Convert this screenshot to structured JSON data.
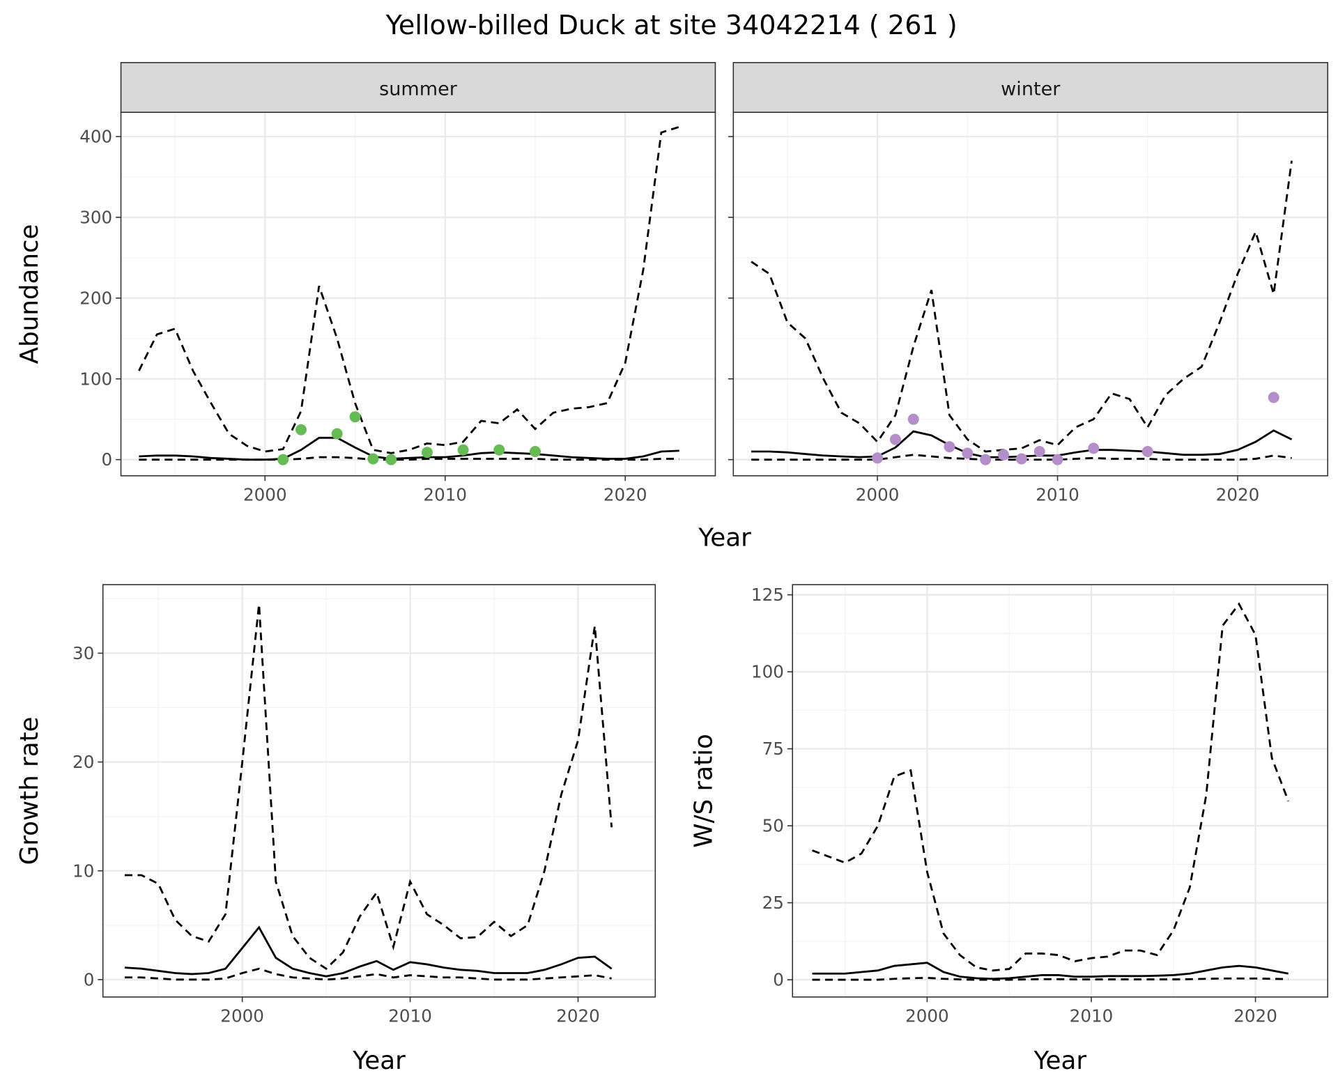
{
  "title": "Yellow-billed Duck at site 34042214 ( 261 )",
  "colors": {
    "summer_points": "#66bb55",
    "winter_points": "#b48ec8",
    "line": "#000000"
  },
  "chart_data": [
    {
      "type": "line",
      "panel": "summer",
      "strip": "summer",
      "xlabel": "Year",
      "ylabel": "Abundance",
      "xlim": [
        1992,
        2025
      ],
      "ylim": [
        -20,
        430
      ],
      "xticks": [
        2000,
        2010,
        2020
      ],
      "yticks": [
        0,
        100,
        200,
        300,
        400
      ],
      "x": [
        1993,
        1994,
        1995,
        1996,
        1997,
        1998,
        1999,
        2000,
        2001,
        2002,
        2003,
        2004,
        2005,
        2006,
        2007,
        2008,
        2009,
        2010,
        2011,
        2012,
        2013,
        2014,
        2015,
        2016,
        2017,
        2018,
        2019,
        2020,
        2021,
        2022,
        2023
      ],
      "series": [
        {
          "name": "upper",
          "style": "dashed",
          "values": [
            110,
            155,
            162,
            110,
            70,
            32,
            17,
            10,
            13,
            60,
            215,
            150,
            70,
            12,
            8,
            12,
            20,
            18,
            22,
            48,
            45,
            62,
            38,
            58,
            63,
            65,
            70,
            120,
            235,
            405,
            412
          ]
        },
        {
          "name": "mean",
          "style": "solid",
          "values": [
            4,
            5,
            5,
            4,
            2,
            1,
            0,
            0,
            1,
            12,
            27,
            27,
            15,
            4,
            1,
            2,
            3,
            3,
            5,
            8,
            9,
            8,
            7,
            5,
            3,
            2,
            1,
            1,
            4,
            10,
            11
          ]
        },
        {
          "name": "lower",
          "style": "dashed",
          "values": [
            0,
            0,
            0,
            0,
            0,
            0,
            0,
            0,
            0,
            1,
            3,
            3,
            2,
            0,
            0,
            0,
            1,
            1,
            1,
            1,
            1,
            1,
            1,
            0,
            0,
            0,
            0,
            0,
            0,
            1,
            1
          ]
        }
      ],
      "points": {
        "x": [
          2001,
          2002,
          2004,
          2005,
          2006,
          2007,
          2009,
          2011,
          2013,
          2015
        ],
        "y": [
          0,
          37,
          32,
          53,
          1,
          0,
          9,
          12,
          12,
          10
        ]
      }
    },
    {
      "type": "line",
      "panel": "winter",
      "strip": "winter",
      "xlabel": "Year",
      "ylabel": "Abundance",
      "xlim": [
        1992,
        2025
      ],
      "ylim": [
        -20,
        430
      ],
      "xticks": [
        2000,
        2010,
        2020
      ],
      "yticks": [
        0,
        100,
        200,
        300,
        400
      ],
      "x": [
        1993,
        1994,
        1995,
        1996,
        1997,
        1998,
        1999,
        2000,
        2001,
        2002,
        2003,
        2004,
        2005,
        2006,
        2007,
        2008,
        2009,
        2010,
        2011,
        2012,
        2013,
        2014,
        2015,
        2016,
        2017,
        2018,
        2019,
        2020,
        2021,
        2022,
        2023
      ],
      "series": [
        {
          "name": "upper",
          "style": "dashed",
          "values": [
            245,
            230,
            170,
            150,
            100,
            58,
            45,
            22,
            55,
            140,
            210,
            55,
            25,
            10,
            12,
            14,
            24,
            18,
            40,
            50,
            82,
            75,
            40,
            80,
            100,
            115,
            170,
            230,
            282,
            205,
            370
          ]
        },
        {
          "name": "mean",
          "style": "solid",
          "values": [
            10,
            10,
            9,
            7,
            5,
            4,
            3,
            4,
            15,
            35,
            30,
            18,
            8,
            3,
            3,
            4,
            5,
            5,
            9,
            12,
            12,
            11,
            10,
            8,
            6,
            6,
            7,
            12,
            22,
            36,
            25
          ]
        },
        {
          "name": "lower",
          "style": "dashed",
          "values": [
            0,
            0,
            0,
            0,
            0,
            0,
            0,
            0,
            3,
            6,
            4,
            2,
            1,
            0,
            0,
            0,
            0,
            0,
            1,
            2,
            1,
            1,
            1,
            0,
            0,
            0,
            0,
            0,
            1,
            5,
            2
          ]
        }
      ],
      "points": {
        "x": [
          2000,
          2001,
          2002,
          2004,
          2005,
          2006,
          2007,
          2008,
          2009,
          2010,
          2012,
          2015,
          2022
        ],
        "y": [
          2,
          25,
          50,
          16,
          8,
          0,
          6,
          1,
          10,
          0,
          14,
          10,
          77
        ]
      }
    },
    {
      "type": "line",
      "panel": "growth",
      "xlabel": "Year",
      "ylabel": "Growth rate",
      "xlim": [
        1991.7,
        2024.6
      ],
      "ylim": [
        -1.6,
        36.3
      ],
      "xticks": [
        2000,
        2010,
        2020
      ],
      "yticks": [
        0,
        10,
        20,
        30
      ],
      "x": [
        1993,
        1994,
        1995,
        1996,
        1997,
        1998,
        1999,
        2000,
        2001,
        2002,
        2003,
        2004,
        2005,
        2006,
        2007,
        2008,
        2009,
        2010,
        2011,
        2012,
        2013,
        2014,
        2015,
        2016,
        2017,
        2018,
        2019,
        2020,
        2021,
        2022
      ],
      "series": [
        {
          "name": "upper",
          "style": "dashed",
          "values": [
            9.6,
            9.6,
            8.8,
            5.5,
            4,
            3.5,
            6,
            20,
            34.5,
            9,
            4,
            2,
            1,
            2.5,
            5.8,
            8,
            3,
            9,
            6,
            5,
            3.8,
            3.9,
            5.3,
            4,
            5,
            10,
            17,
            22,
            32.5,
            14
          ]
        },
        {
          "name": "mean",
          "style": "solid",
          "values": [
            1.1,
            1.0,
            0.8,
            0.6,
            0.5,
            0.6,
            1.0,
            2.9,
            4.8,
            2.0,
            1.0,
            0.6,
            0.3,
            0.6,
            1.2,
            1.7,
            0.9,
            1.6,
            1.4,
            1.1,
            0.9,
            0.8,
            0.6,
            0.6,
            0.6,
            0.9,
            1.4,
            2.0,
            2.1,
            1.0
          ]
        },
        {
          "name": "lower",
          "style": "dashed",
          "values": [
            0.2,
            0.2,
            0.1,
            0,
            0,
            0,
            0.1,
            0.6,
            1.0,
            0.5,
            0.2,
            0.1,
            0,
            0.1,
            0.3,
            0.5,
            0.2,
            0.4,
            0.3,
            0.2,
            0.2,
            0.1,
            0,
            0,
            0,
            0.1,
            0.2,
            0.3,
            0.4,
            0.1
          ]
        }
      ]
    },
    {
      "type": "line",
      "panel": "ws",
      "xlabel": "Year",
      "ylabel": "W/S ratio",
      "xlim": [
        1991.8,
        2024.4
      ],
      "ylim": [
        -5.6,
        128.3
      ],
      "xticks": [
        2000,
        2010,
        2020
      ],
      "yticks": [
        0,
        25,
        50,
        75,
        100,
        125
      ],
      "x": [
        1993,
        1994,
        1995,
        1996,
        1997,
        1998,
        1999,
        2000,
        2001,
        2002,
        2003,
        2004,
        2005,
        2006,
        2007,
        2008,
        2009,
        2010,
        2011,
        2012,
        2013,
        2014,
        2015,
        2016,
        2017,
        2018,
        2019,
        2020,
        2021,
        2022
      ],
      "series": [
        {
          "name": "upper",
          "style": "dashed",
          "values": [
            42,
            40,
            38,
            41,
            50,
            66,
            68,
            35,
            15,
            8,
            4,
            3,
            3.5,
            8.5,
            8.5,
            8,
            6,
            7,
            7.5,
            9.5,
            9.5,
            8,
            16,
            30,
            60,
            115,
            122,
            112,
            72,
            58
          ]
        },
        {
          "name": "mean",
          "style": "solid",
          "values": [
            2,
            2,
            2,
            2.5,
            3,
            4.5,
            5,
            5.5,
            2.5,
            1,
            0.5,
            0.3,
            0.5,
            1,
            1.5,
            1.5,
            1,
            1,
            1.2,
            1.2,
            1.2,
            1.3,
            1.5,
            2,
            3,
            4,
            4.5,
            4,
            3,
            2
          ]
        },
        {
          "name": "lower",
          "style": "dashed",
          "values": [
            0,
            0,
            0,
            0,
            0,
            0.3,
            0.5,
            0.6,
            0.3,
            0.1,
            0,
            0,
            0,
            0.1,
            0.2,
            0.2,
            0.1,
            0.1,
            0.1,
            0.1,
            0.1,
            0.1,
            0.1,
            0.2,
            0.3,
            0.4,
            0.4,
            0.4,
            0.3,
            0.2
          ]
        }
      ]
    }
  ]
}
